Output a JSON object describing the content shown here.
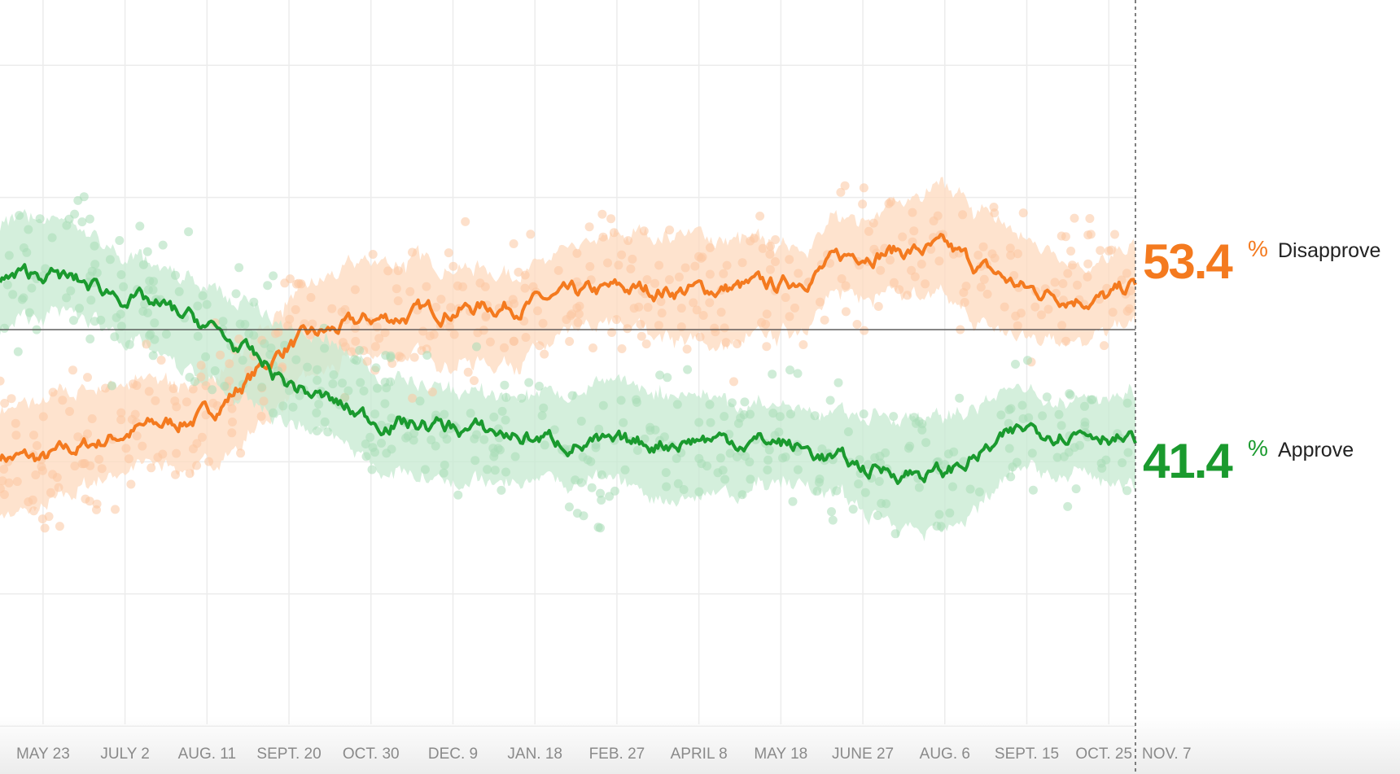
{
  "chart_data": {
    "type": "line",
    "title": "",
    "xlabel": "",
    "ylabel": "",
    "ylim": [
      20,
      70
    ],
    "y_gridlines": [
      20,
      30,
      40,
      50,
      60,
      70
    ],
    "reference_line": 50,
    "x_tick_labels": [
      "MAY 23",
      "JULY 2",
      "AUG. 11",
      "SEPT. 20",
      "OCT. 30",
      "DEC. 9",
      "JAN. 18",
      "FEB. 27",
      "APRIL 8",
      "MAY 18",
      "JUNE 27",
      "AUG. 6",
      "SEPT. 15",
      "OCT. 25",
      "NOV. 7"
    ],
    "x_tick_days": [
      21,
      61,
      101,
      141,
      181,
      221,
      261,
      301,
      341,
      381,
      421,
      461,
      501,
      541,
      554
    ],
    "x_days": [
      0,
      21,
      61,
      101,
      141,
      181,
      221,
      261,
      301,
      341,
      381,
      421,
      461,
      501,
      541,
      554
    ],
    "series": [
      {
        "name": "Disapprove",
        "color": "#f47a1f",
        "band_color": "#fdd9bd",
        "dot_color": "#fbc7a0",
        "values": [
          40.5,
          40.1,
          42.2,
          43.5,
          48.9,
          50.7,
          51.6,
          52.0,
          53.0,
          53.0,
          53.3,
          56.0,
          56.0,
          53.0,
          52.3,
          53.4
        ]
      },
      {
        "name": "Approve",
        "color": "#1a9a2e",
        "band_color": "#c6ead0",
        "dot_color": "#a8dcb6",
        "values": [
          53.6,
          54.3,
          52.6,
          50.3,
          45.9,
          43.2,
          42.6,
          41.8,
          41.1,
          41.8,
          41.5,
          39.5,
          39.1,
          42.5,
          42.3,
          41.4
        ]
      }
    ]
  },
  "labels": {
    "disapprove_value": "53.4",
    "disapprove_pct": "%",
    "disapprove_label": "Disapprove",
    "approve_value": "41.4",
    "approve_pct": "%",
    "approve_label": "Approve"
  }
}
